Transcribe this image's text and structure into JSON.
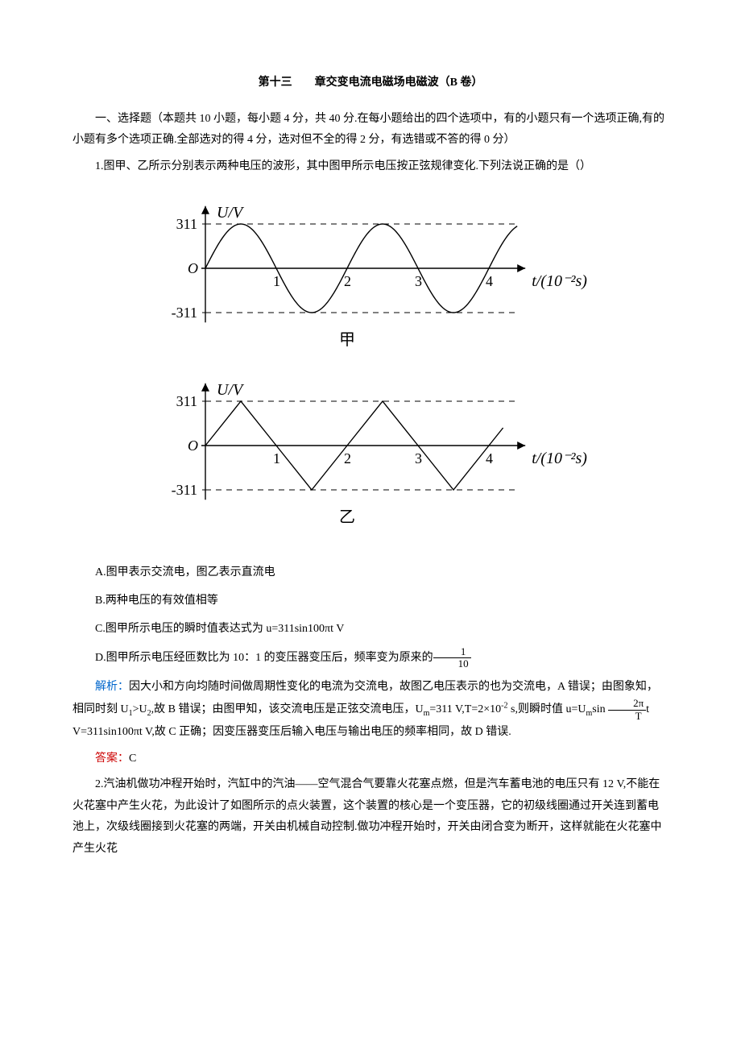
{
  "title": "第十三　　章交变电流电磁场电磁波（B 卷）",
  "intro": "一、选择题（本题共 10 小题，每小题 4 分，共 40 分.在每小题给出的四个选项中，有的小题只有一个选项正确,有的小题有多个选项正确.全部选对的得 4 分，选对但不全的得 2 分，有选错或不答的得 0 分）",
  "q1": {
    "stem": "1.图甲、乙所示分别表示两种电压的波形，其中图甲所示电压按正弦规律变化.下列法说正确的是（）",
    "optA": "A.图甲表示交流电，图乙表示直流电",
    "optB": "B.两种电压的有效值相等",
    "optC": "C.图甲所示电压的瞬时值表达式为 u=311sin100πt V",
    "optD_pre": "D.图甲所示电压经匝数比为 10：1 的变压器变压后，频率变为原来的",
    "optD_frac_num": "1",
    "optD_frac_den": "10",
    "analysis_label": "解析：",
    "analysis_1": "因大小和方向均随时间做周期性变化的电流为交流电，故图乙电压表示的也为交流电，A 错误；由图象知，相同时刻 U",
    "analysis_u1": "1",
    "analysis_gt": ">U",
    "analysis_u2": "2",
    "analysis_2": ",故 B 错误；由图甲知，该交流电压是正弦交流电压，U",
    "analysis_um": "m",
    "analysis_3": "=311 V,T=2×10",
    "analysis_exp": "-2",
    "analysis_4": " s,则瞬时值 u=U",
    "analysis_5": "sin ",
    "analysis_frac_num": "2π",
    "analysis_frac_den": "T",
    "analysis_6": "t V=311sin100πt V,故 C 正确；因变压器变压后输入电压与输出电压的频率相同，故 D 错误.",
    "answer_label": "答案：",
    "answer": "C"
  },
  "q2": {
    "stem": "2.汽油机做功冲程开始时，汽缸中的汽油——空气混合气要靠火花塞点燃，但是汽车蓄电池的电压只有 12 V,不能在火花塞中产生火花，为此设计了如图所示的点火装置，这个装置的核心是一个变压器，它的初级线圈通过开关连到蓄电池上，次级线圈接到火花塞的两端，开关由机械自动控制.做功冲程开始时，开关由闭合变为断开，这样就能在火花塞中产生火花"
  },
  "chart_jia": {
    "type": "line-sine",
    "label": "甲",
    "y_axis_label": "U/V",
    "x_axis_label": "t/(10⁻²s)",
    "y_ticks": [
      311,
      -311
    ],
    "y_tick_labels": [
      "311",
      "-311"
    ],
    "x_ticks": [
      1,
      2,
      3,
      4
    ],
    "xlim": [
      0,
      4.4
    ],
    "ylim": [
      -380,
      380
    ],
    "amplitude": 311,
    "period": 2,
    "stroke_color": "#000000",
    "stroke_width": 1.4,
    "dash_guide_color": "#000000",
    "background": "#ffffff",
    "origin_label": "O",
    "fontsize_axis": 20,
    "fontsize_tick": 18
  },
  "chart_yi": {
    "type": "line-triangle",
    "label": "乙",
    "y_axis_label": "U/V",
    "x_axis_label": "t/(10⁻²s)",
    "y_ticks": [
      311,
      -311
    ],
    "y_tick_labels": [
      "311",
      "-311"
    ],
    "x_ticks": [
      1,
      2,
      3,
      4
    ],
    "xlim": [
      0,
      4.4
    ],
    "ylim": [
      -380,
      380
    ],
    "amplitude": 311,
    "period": 2,
    "stroke_color": "#000000",
    "stroke_width": 1.4,
    "dash_guide_color": "#000000",
    "background": "#ffffff",
    "origin_label": "O",
    "fontsize_axis": 20,
    "fontsize_tick": 18
  }
}
